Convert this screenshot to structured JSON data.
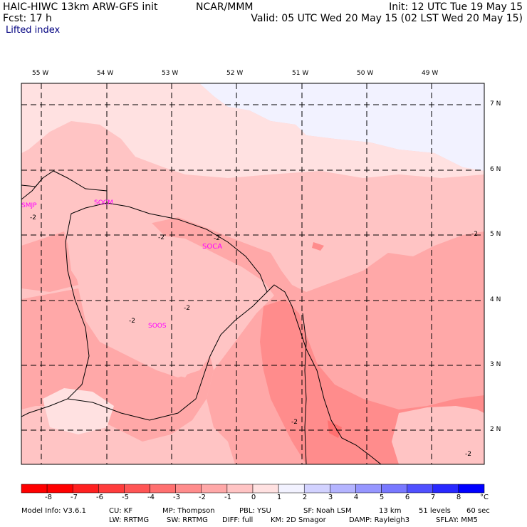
{
  "header": {
    "model": "HAIC-HIWC 13km ARW-GFS init",
    "org": "NCAR/MMM",
    "fcst": "Fcst:    17 h",
    "field": "Lifted index",
    "init": "Init: 12 UTC Tue 19 May 15",
    "valid": "Valid: 05 UTC Wed 20 May 15 (02 LST Wed 20 May 15)"
  },
  "map": {
    "lon_labels": [
      "55 W",
      "54 W",
      "53 W",
      "52 W",
      "51 W",
      "50 W",
      "49 W"
    ],
    "lat_labels": [
      "7 N",
      "6 N",
      "5 N",
      "4 N",
      "3 N",
      "2 N"
    ],
    "stations": [
      "SMJP",
      "SOCM",
      "SOCA",
      "SOOS"
    ],
    "contour_labels": [
      "-2",
      "-2",
      "-2",
      "-2",
      "-2",
      "-2",
      "-2",
      "-2"
    ]
  },
  "colorbar": {
    "labels": [
      "-8",
      "-7",
      "-6",
      "-5",
      "-4",
      "-3",
      "-2",
      "-1",
      "0",
      "1",
      "2",
      "3",
      "4",
      "5",
      "6",
      "7",
      "8"
    ],
    "unit": "°C",
    "colors": [
      "#ff0000",
      "#ff2020",
      "#ff3c3c",
      "#ff5555",
      "#ff7070",
      "#ff8c8c",
      "#ffa8a8",
      "#ffc4c4",
      "#ffe1e1",
      "#f2f2ff",
      "#d2d2ff",
      "#b4b4ff",
      "#9696ff",
      "#7878ff",
      "#5050ff",
      "#2828ff",
      "#0000ff"
    ]
  },
  "footer": {
    "line1": [
      "Model Info: V3.6.1",
      "CU: KF",
      "MP: Thompson",
      "PBL: YSU",
      "SF: Noah LSM",
      "13 km",
      "51 levels",
      "60 sec"
    ],
    "line2": [
      "LW: RRTMG",
      "SW: RRTMG",
      "DIFF: full",
      "KM: 2D Smagor",
      "DAMP: Rayleigh3",
      "SFLAY: MM5"
    ]
  }
}
